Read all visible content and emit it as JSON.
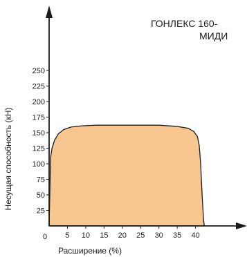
{
  "chart_data": {
    "type": "area",
    "title_lines": [
      "ГОНЛЕКС 160-",
      "МИДИ"
    ],
    "xlabel": "Расширение (%)",
    "ylabel": "Несущая способность (кН)",
    "xlim": [
      0,
      45
    ],
    "ylim": [
      0,
      265
    ],
    "x_ticks": [
      5,
      10,
      15,
      20,
      25,
      30,
      35,
      40
    ],
    "y_ticks": [
      25,
      50,
      75,
      100,
      125,
      150,
      175,
      200,
      225,
      250
    ],
    "origin_label": "0",
    "grid": false,
    "fill_color": "#f8c690",
    "line_color": "#1a1a1a",
    "series": [
      {
        "x": [
          0,
          0.4,
          0.8,
          1.5,
          2.5,
          4,
          6,
          9,
          13,
          18,
          25,
          30,
          35,
          38,
          39.5,
          40.5,
          41,
          41.4,
          41.8,
          42.2,
          42.4
        ],
        "y": [
          0,
          110,
          125,
          138,
          148,
          155,
          159,
          161,
          162,
          162,
          162,
          162,
          160,
          157,
          152,
          144,
          130,
          100,
          50,
          10,
          0
        ]
      }
    ]
  }
}
